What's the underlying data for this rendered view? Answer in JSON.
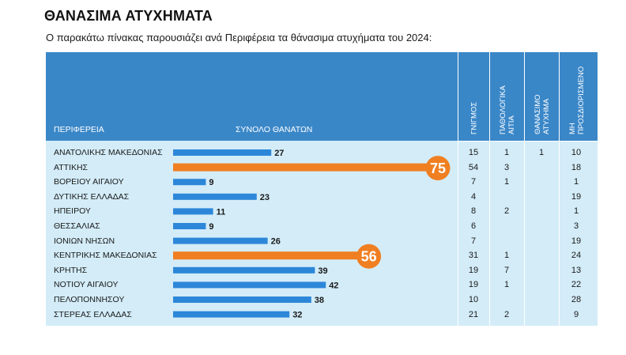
{
  "title": "ΘΑΝΑΣΙΜΑ ΑΤΥΧΗΜΑΤΑ",
  "subtitle": "Ο παρακάτω πίνακας παρουσιάζει ανά Περιφέρεια τα θάνασιμα ατυχήματα του 2024:",
  "colors": {
    "header": "#3a87c8",
    "panel": "#d3ecf8",
    "bar": "#2d87d9",
    "highlight": "#f07f22"
  },
  "chart_data": {
    "type": "bar",
    "orientation": "horizontal",
    "headers": {
      "region": "ΠΕΡΙΦΕΡΕΙΑ",
      "total": "ΣΥΝΟΛΟ ΘΑΝΑΤΩΝ",
      "col1": "ΓΝΙΓΜΟΣ",
      "col2": [
        "ΠΑΘΟΛΟΓΙΚΑ",
        "ΑΙΤΙΑ"
      ],
      "col3": [
        "ΘΑΝΑΣΙΜΟ",
        "ΑΤΥΧΗΜΑ"
      ],
      "col4": [
        "ΜΗ",
        "ΠΡΟΣΔΙΟΡΙΣΜΕΝΟ"
      ]
    },
    "xlim": [
      0,
      75
    ],
    "highlighted": [
      "ΑΤΤΙΚΗΣ",
      "ΚΕΝΤΡΙΚΗΣ ΜΑΚΕΔΟΝΙΑΣ"
    ],
    "rows": [
      {
        "region": "ΑΝΑΤΟΛΙΚΗΣ ΜΑΚΕΔΟΝΙΑΣ",
        "total": 27,
        "col1": "15",
        "col2": "1",
        "col3": "1",
        "col4": "10"
      },
      {
        "region": "ΑΤΤΙΚΗΣ",
        "total": 75,
        "col1": "54",
        "col2": "3",
        "col3": "",
        "col4": "18"
      },
      {
        "region": "ΒΟΡΕΙΟΥ ΑΙΓΑΙΟΥ",
        "total": 9,
        "col1": "7",
        "col2": "1",
        "col3": "",
        "col4": "1"
      },
      {
        "region": "ΔΥΤΙΚΗΣ ΕΛΛΑΔΑΣ",
        "total": 23,
        "col1": "4",
        "col2": "",
        "col3": "",
        "col4": "19"
      },
      {
        "region": "ΗΠΕΙΡΟΥ",
        "total": 11,
        "col1": "8",
        "col2": "2",
        "col3": "",
        "col4": "1"
      },
      {
        "region": "ΘΕΣΣΑΛΙΑΣ",
        "total": 9,
        "col1": "6",
        "col2": "",
        "col3": "",
        "col4": "3"
      },
      {
        "region": "ΙΟΝΙΩΝ ΝΗΣΩΝ",
        "total": 26,
        "col1": "7",
        "col2": "",
        "col3": "",
        "col4": "19"
      },
      {
        "region": "ΚΕΝΤΡΙΚΗΣ ΜΑΚΕΔΟΝΙΑΣ",
        "total": 56,
        "col1": "31",
        "col2": "1",
        "col3": "",
        "col4": "24"
      },
      {
        "region": "ΚΡΗΤΗΣ",
        "total": 39,
        "col1": "19",
        "col2": "7",
        "col3": "",
        "col4": "13"
      },
      {
        "region": "ΝΟΤΙΟΥ ΑΙΓΑΙΟΥ",
        "total": 42,
        "col1": "19",
        "col2": "1",
        "col3": "",
        "col4": "22"
      },
      {
        "region": "ΠΕΛΟΠΟΝΝΗΣΟΥ",
        "total": 38,
        "col1": "10",
        "col2": "",
        "col3": "",
        "col4": "28"
      },
      {
        "region": "ΣΤΕΡΕΑΣ ΕΛΛΑΔΑΣ",
        "total": 32,
        "col1": "21",
        "col2": "2",
        "col3": "",
        "col4": "9"
      }
    ]
  }
}
